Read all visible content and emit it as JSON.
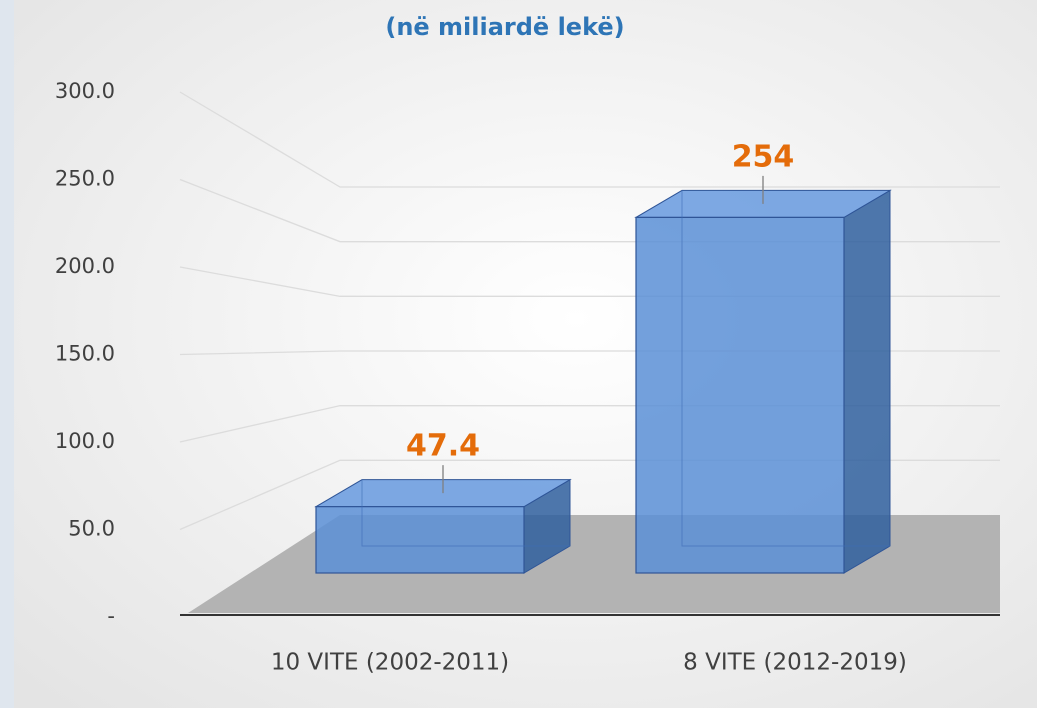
{
  "chart_data": {
    "type": "bar3d",
    "title": "(në miliardë lekë)",
    "categories": [
      "10 VITE (2002-2011)",
      "8 VITE (2012-2019)"
    ],
    "values": [
      47.4,
      254
    ],
    "color": "#5b8fd6",
    "label_color": "#e46c0a",
    "title_color": "#2e75b6",
    "ylim": [
      0,
      300
    ],
    "yticks": [
      {
        "value": 0,
        "label": "-"
      },
      {
        "value": 50,
        "label": "50.0"
      },
      {
        "value": 100,
        "label": "100.0"
      },
      {
        "value": 150,
        "label": "150.0"
      },
      {
        "value": 200,
        "label": "200.0"
      },
      {
        "value": 250,
        "label": "250.0"
      },
      {
        "value": 300,
        "label": "300.0"
      }
    ],
    "grid": true
  }
}
